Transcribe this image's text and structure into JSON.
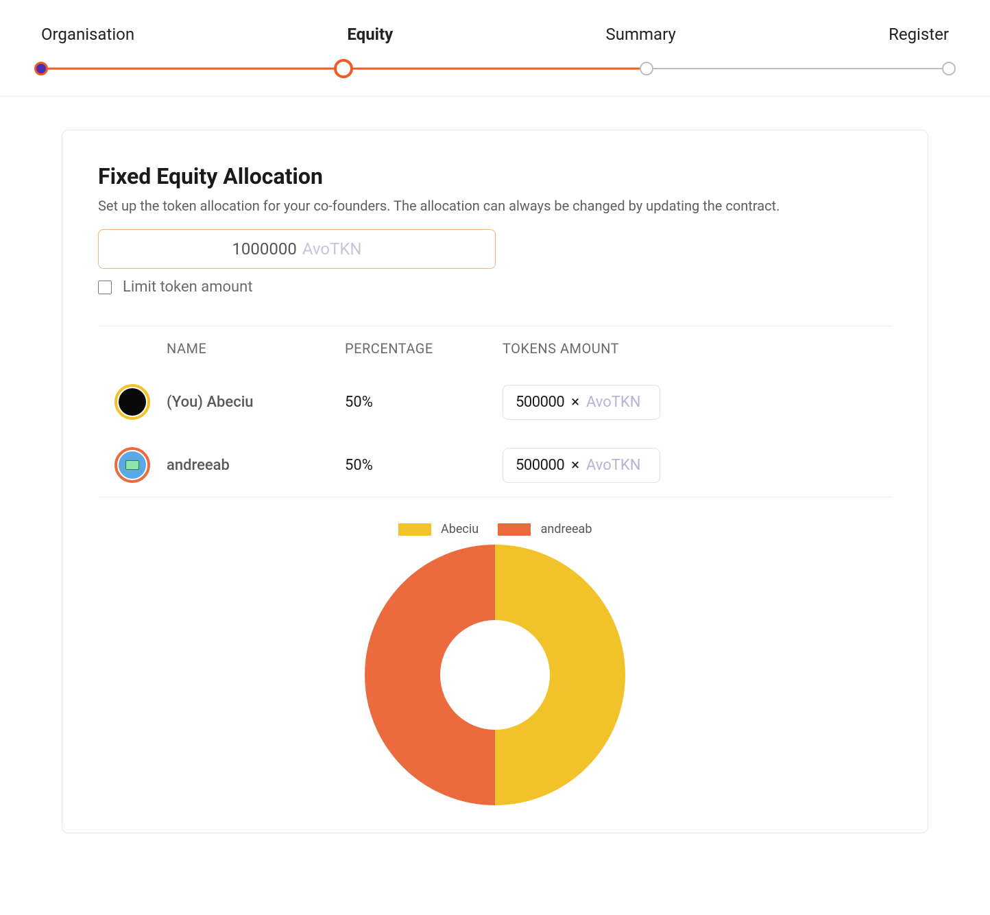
{
  "stepper": {
    "steps": [
      "Organisation",
      "Equity",
      "Summary",
      "Register"
    ],
    "active_index": 1,
    "completed_through_index": 2,
    "colors": {
      "active": "#f15a24",
      "inactive": "#bdbdbd",
      "node0_fill": "#4a2fb3"
    }
  },
  "card": {
    "title": "Fixed Equity Allocation",
    "description": "Set up the token allocation for your co-founders. The allocation can always be changed by updating the contract."
  },
  "token_supply": {
    "value": "1000000",
    "symbol": "AvoTKN",
    "border_color": "#f7b27a"
  },
  "limit_toggle": {
    "label": "Limit token amount",
    "checked": false
  },
  "table": {
    "headers": {
      "name": "NAME",
      "percentage": "PERCENTAGE",
      "tokens": "TOKENS AMOUNT"
    },
    "rows": [
      {
        "id": "you",
        "name": "(You) Abeciu",
        "percentage": "50%",
        "tokens": "500000",
        "symbol": "AvoTKN",
        "avatar_ring_color": "#f2c22b"
      },
      {
        "id": "andreeab",
        "name": "andreeab",
        "percentage": "50%",
        "tokens": "500000",
        "symbol": "AvoTKN",
        "avatar_ring_color": "#ec6b3e"
      }
    ]
  },
  "chart": {
    "type": "donut",
    "background_color": "#ffffff",
    "inner_radius_ratio": 0.45,
    "legend": [
      {
        "label": "Abeciu",
        "color": "#f2c22b"
      },
      {
        "label": "andreeab",
        "color": "#ec6b3e"
      }
    ],
    "slices": [
      {
        "label": "Abeciu",
        "value": 50,
        "color": "#f2c22b",
        "position": "right"
      },
      {
        "label": "andreeab",
        "value": 50,
        "color": "#ec6b3e",
        "position": "left"
      }
    ],
    "legend_fontsize": 18
  }
}
